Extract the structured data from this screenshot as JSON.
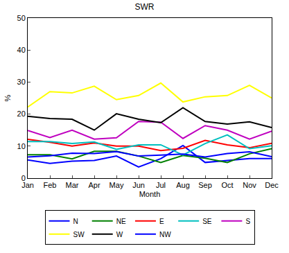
{
  "chart_data": {
    "type": "line",
    "title": "SWR",
    "x_label": "Month",
    "y_label": "%",
    "categories": [
      "Jan",
      "Feb",
      "Mar",
      "Apr",
      "May",
      "Jun",
      "Jul",
      "Aug",
      "Sep",
      "Oct",
      "Nov",
      "Dec"
    ],
    "series": [
      {
        "name": "N",
        "color": "#0000ff",
        "values": [
          5.7,
          4.6,
          5.3,
          5.5,
          6.9,
          3.5,
          6.1,
          10.2,
          4.9,
          5.5,
          6.1,
          6.1
        ]
      },
      {
        "name": "NE",
        "color": "#008000",
        "values": [
          7.3,
          7.3,
          6.0,
          8.4,
          8.4,
          6.9,
          4.9,
          7.1,
          6.2,
          4.9,
          7.6,
          9.2
        ]
      },
      {
        "name": "E",
        "color": "#ff0000",
        "values": [
          12.1,
          11.2,
          10.0,
          11.0,
          10.0,
          10.0,
          8.6,
          9.3,
          11.8,
          10.4,
          9.5,
          10.9
        ]
      },
      {
        "name": "SE",
        "color": "#00bfbf",
        "values": [
          11.4,
          11.4,
          10.8,
          11.3,
          9.0,
          10.4,
          10.4,
          7.2,
          10.8,
          13.5,
          9.2,
          10.1
        ]
      },
      {
        "name": "S",
        "color": "#bf00bf",
        "values": [
          14.9,
          12.7,
          15.0,
          12.2,
          12.6,
          17.7,
          17.5,
          12.4,
          16.4,
          15.0,
          12.2,
          14.7
        ]
      },
      {
        "name": "SW",
        "color": "#ffff00",
        "values": [
          22.2,
          27.0,
          26.6,
          28.7,
          24.5,
          25.8,
          29.7,
          23.8,
          25.4,
          25.8,
          29.0,
          25.0
        ]
      },
      {
        "name": "W",
        "color": "#000000",
        "values": [
          19.3,
          18.6,
          18.4,
          15.0,
          20.1,
          18.4,
          17.3,
          22.0,
          17.7,
          16.9,
          17.6,
          15.8
        ]
      },
      {
        "name": "NW",
        "color": "#0000ff",
        "values": [
          6.6,
          7.0,
          7.8,
          7.7,
          8.3,
          6.9,
          7.2,
          7.5,
          6.6,
          7.7,
          8.2,
          6.7
        ]
      }
    ],
    "ylim": [
      0,
      50
    ],
    "yticks": [
      0,
      10,
      20,
      30,
      40,
      50
    ],
    "grid": false,
    "legend": "bottom"
  }
}
